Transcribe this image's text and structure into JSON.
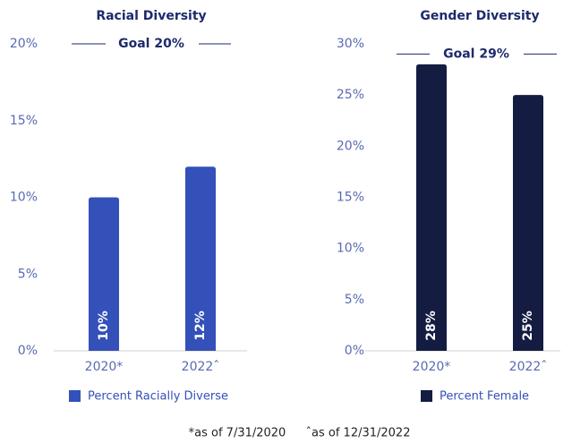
{
  "chart_data": [
    {
      "type": "bar",
      "title": "Racial Diversity",
      "goal": {
        "value": 20,
        "label": "Goal 20%"
      },
      "categories": [
        "2020*",
        "2022ˆ"
      ],
      "series": [
        {
          "name": "Percent Racially Diverse",
          "color": "#3450b9",
          "values": [
            10,
            12
          ],
          "value_labels": [
            "10%",
            "12%"
          ]
        }
      ],
      "ylim": [
        0,
        20
      ],
      "yticks": [
        {
          "value": 0,
          "label": "0%"
        },
        {
          "value": 5,
          "label": "5%"
        },
        {
          "value": 10,
          "label": "10%"
        },
        {
          "value": 15,
          "label": "15%"
        },
        {
          "value": 20,
          "label": "20%"
        }
      ]
    },
    {
      "type": "bar",
      "title": "Gender Diversity",
      "goal": {
        "value": 29,
        "label": "Goal 29%"
      },
      "categories": [
        "2020*",
        "2022ˆ"
      ],
      "series": [
        {
          "name": "Percent Female",
          "color": "#141c42",
          "values": [
            28,
            25
          ],
          "value_labels": [
            "28%",
            "25%"
          ]
        }
      ],
      "ylim": [
        0,
        30
      ],
      "yticks": [
        {
          "value": 0,
          "label": "0%"
        },
        {
          "value": 5,
          "label": "5%"
        },
        {
          "value": 10,
          "label": "10%"
        },
        {
          "value": 15,
          "label": "15%"
        },
        {
          "value": 20,
          "label": "20%"
        },
        {
          "value": 25,
          "label": "25%"
        },
        {
          "value": 30,
          "label": "30%"
        }
      ]
    }
  ],
  "footnotes": [
    "*as of 7/31/2020",
    "ˆas of 12/31/2022"
  ]
}
